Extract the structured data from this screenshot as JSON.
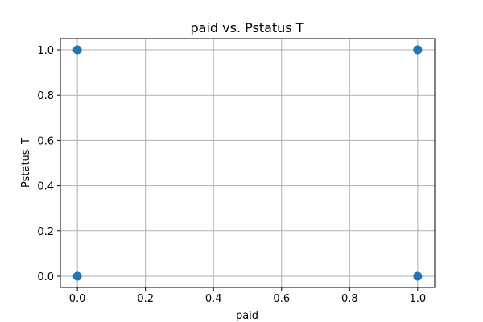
{
  "chart_data": {
    "type": "scatter",
    "title": "paid vs. Pstatus T",
    "xlabel": "paid",
    "ylabel": "Pstatus_T",
    "xlim": [
      -0.05,
      1.05
    ],
    "ylim": [
      -0.05,
      1.05
    ],
    "x_ticks": [
      0.0,
      0.2,
      0.4,
      0.6,
      0.8,
      1.0
    ],
    "x_tick_labels": [
      "0.0",
      "0.2",
      "0.4",
      "0.6",
      "0.8",
      "1.0"
    ],
    "y_ticks": [
      0.0,
      0.2,
      0.4,
      0.6,
      0.8,
      1.0
    ],
    "y_tick_labels": [
      "0.0",
      "0.2",
      "0.4",
      "0.6",
      "0.8",
      "1.0"
    ],
    "grid": true,
    "point_color": "#1f77b4",
    "points": [
      {
        "x": 0,
        "y": 1
      },
      {
        "x": 1,
        "y": 1
      },
      {
        "x": 0,
        "y": 0
      },
      {
        "x": 1,
        "y": 0
      }
    ]
  }
}
